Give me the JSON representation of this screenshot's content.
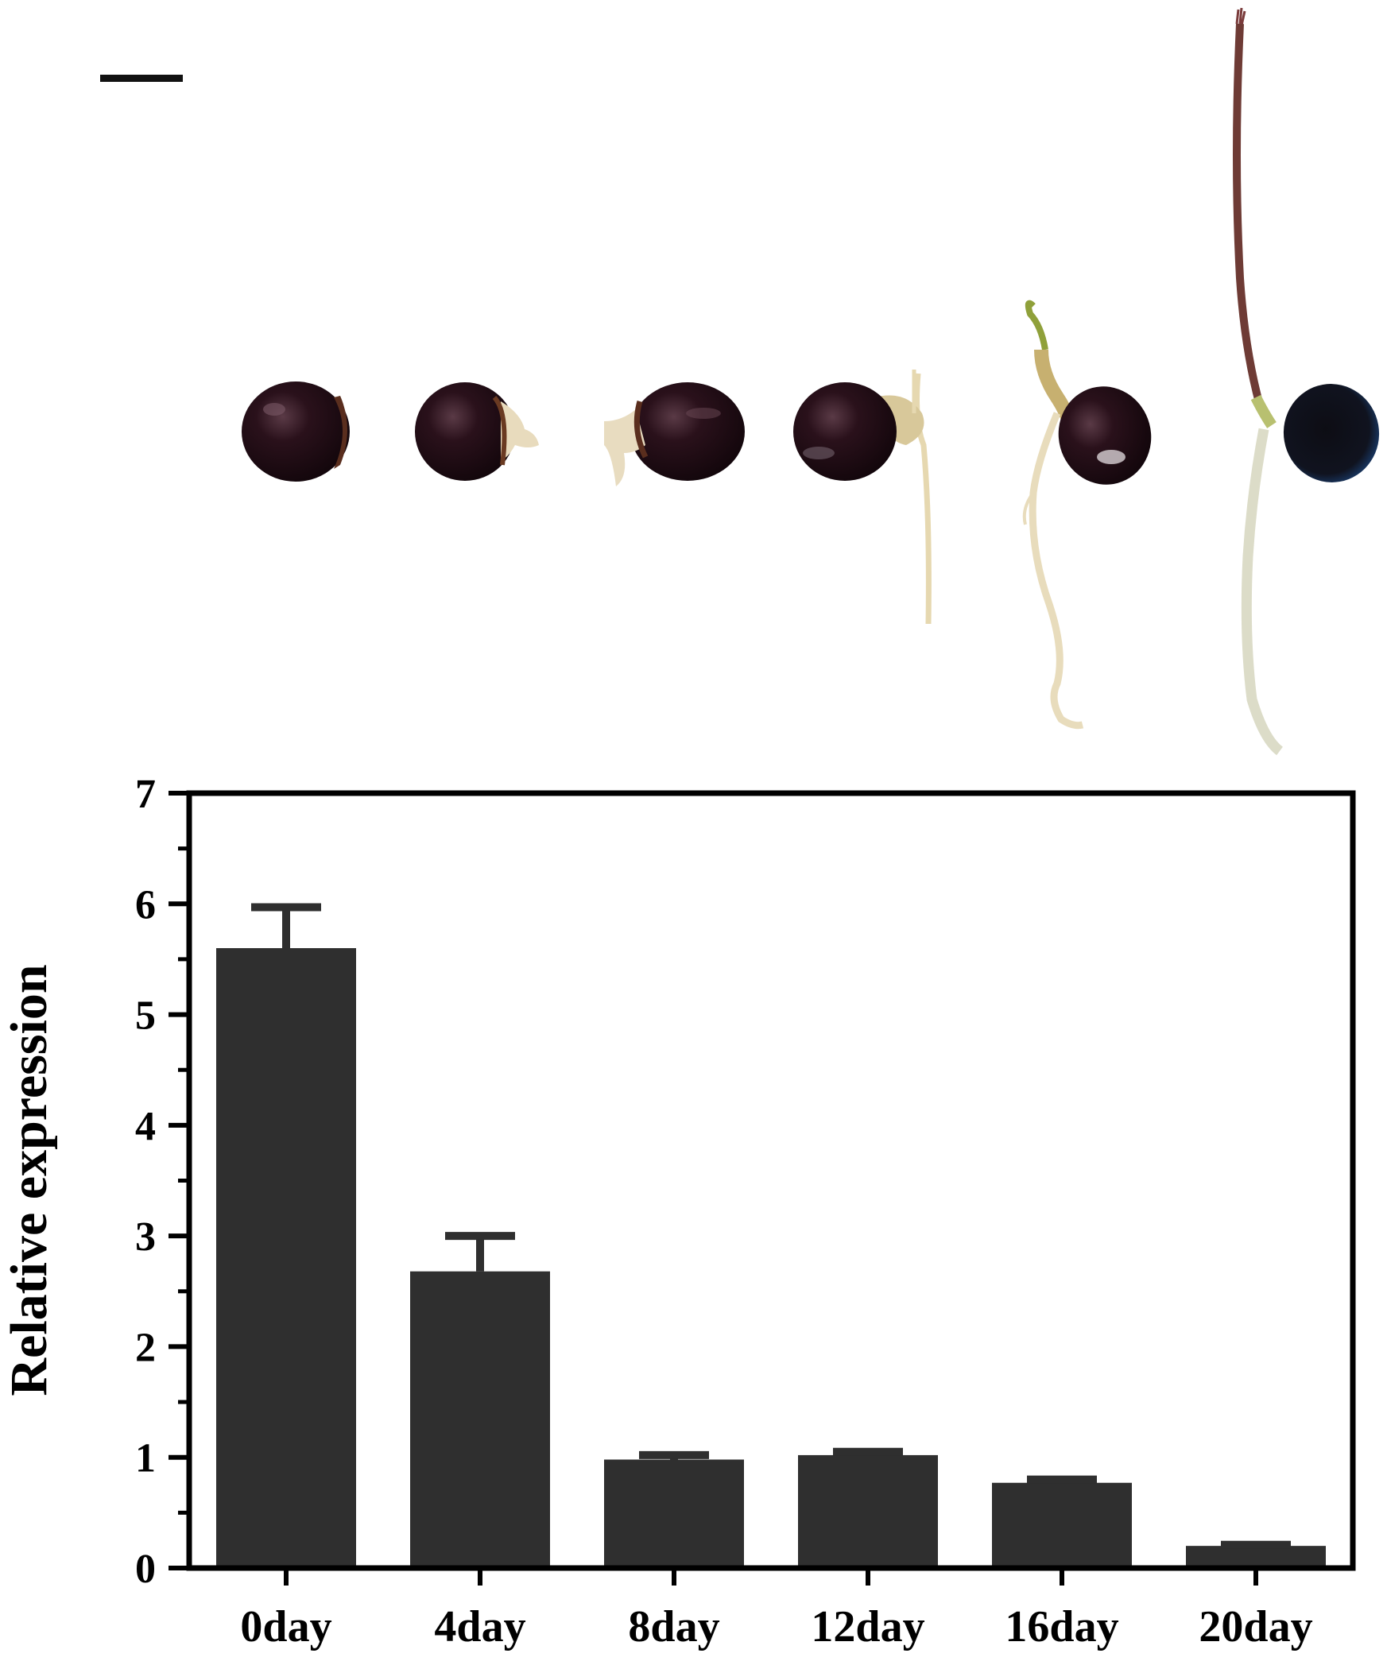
{
  "photo": {
    "description_icons": [
      "seed-0day-photo",
      "seed-4day-photo",
      "seed-8day-photo",
      "seed-12day-photo",
      "seed-16day-photo",
      "seed-20day-photo"
    ],
    "colors": {
      "seed_coat": "#1c0a10",
      "seed_highlight": "#6b4a55",
      "seed_blue": "#0e2a55",
      "root": "#e8dcbc",
      "stem": "#6e3b35",
      "hypocotyl": "#c7b070"
    }
  },
  "chart_data": {
    "type": "bar",
    "title": "",
    "xlabel": "",
    "ylabel": "Relative expression",
    "categories": [
      "0day",
      "4day",
      "8day",
      "12day",
      "16day",
      "20day"
    ],
    "series": [
      {
        "values": [
          5.6,
          2.68,
          0.98,
          1.02,
          0.77,
          0.2
        ],
        "errors": [
          0.37,
          0.32,
          0.04,
          0.03,
          0.03,
          0.01
        ],
        "color": "#2f2f2f"
      }
    ],
    "ylim": [
      0,
      7
    ],
    "yticks": [
      0,
      1,
      2,
      3,
      4,
      5,
      6,
      7
    ],
    "ytick_labels": [
      "0",
      "1",
      "2",
      "3",
      "4",
      "5",
      "6",
      "7"
    ],
    "minor_ticks": true,
    "grid": false,
    "legend": "none"
  }
}
